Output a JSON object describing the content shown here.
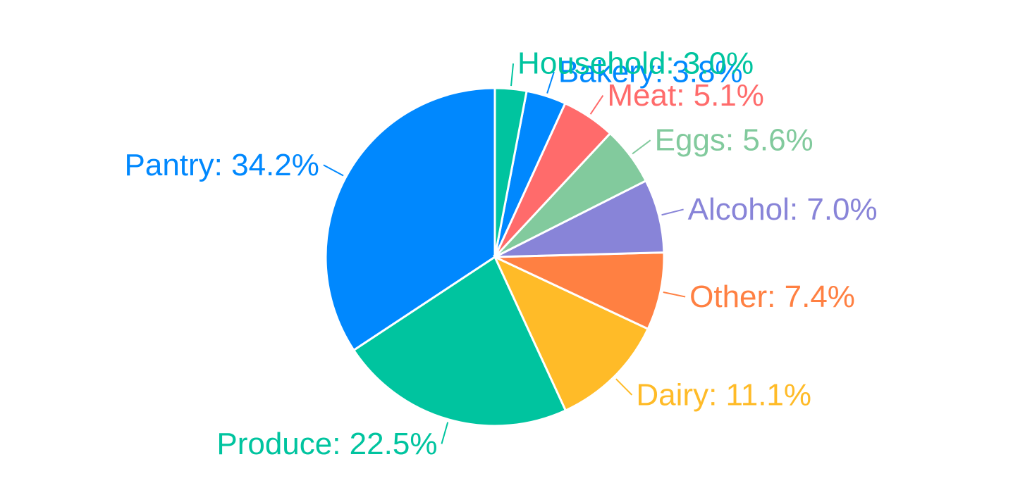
{
  "chart_data": {
    "type": "pie",
    "start_angle_deg": 90,
    "slices": [
      {
        "label": "Pantry",
        "value": 34.2,
        "display": "Pantry: 34.2%",
        "color": "#0088FE"
      },
      {
        "label": "Produce",
        "value": 22.5,
        "display": "Produce: 22.5%",
        "color": "#00C49F"
      },
      {
        "label": "Dairy",
        "value": 11.1,
        "display": "Dairy: 11.1%",
        "color": "#FFBB28"
      },
      {
        "label": "Other",
        "value": 7.4,
        "display": "Other: 7.4%",
        "color": "#FF8042"
      },
      {
        "label": "Alcohol",
        "value": 7.0,
        "display": "Alcohol: 7.0%",
        "color": "#8884D8"
      },
      {
        "label": "Eggs",
        "value": 5.6,
        "display": "Eggs: 5.6%",
        "color": "#82CA9D"
      },
      {
        "label": "Meat",
        "value": 5.1,
        "display": "Meat: 5.1%",
        "color": "#FF6B6B"
      },
      {
        "label": "Bakery",
        "value": 3.8,
        "display": "Bakery: 3.8%",
        "color": "#0088FE"
      },
      {
        "label": "Household",
        "value": 3.0,
        "display": "Household: 3.0%",
        "color": "#00C49F"
      }
    ]
  }
}
